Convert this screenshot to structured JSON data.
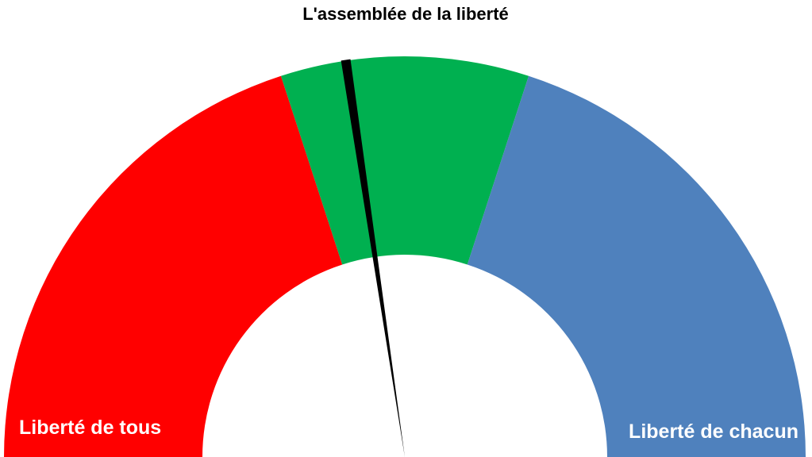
{
  "chart_data": {
    "type": "gauge",
    "title": "L'assemblée de la liberté",
    "scale_min": 0,
    "scale_max": 100,
    "segments": [
      {
        "name": "Liberté de tous",
        "from": 0,
        "to": 40,
        "color": "#ff0000"
      },
      {
        "name": "",
        "from": 40,
        "to": 60,
        "color": "#00b050"
      },
      {
        "name": "Liberté de chacun",
        "from": 60,
        "to": 100,
        "color": "#4f81bd"
      }
    ],
    "needle": {
      "value": 45.3,
      "color": "#000000"
    },
    "end_labels": {
      "left": "Liberté de tous",
      "right": "Liberté de chacun"
    }
  }
}
